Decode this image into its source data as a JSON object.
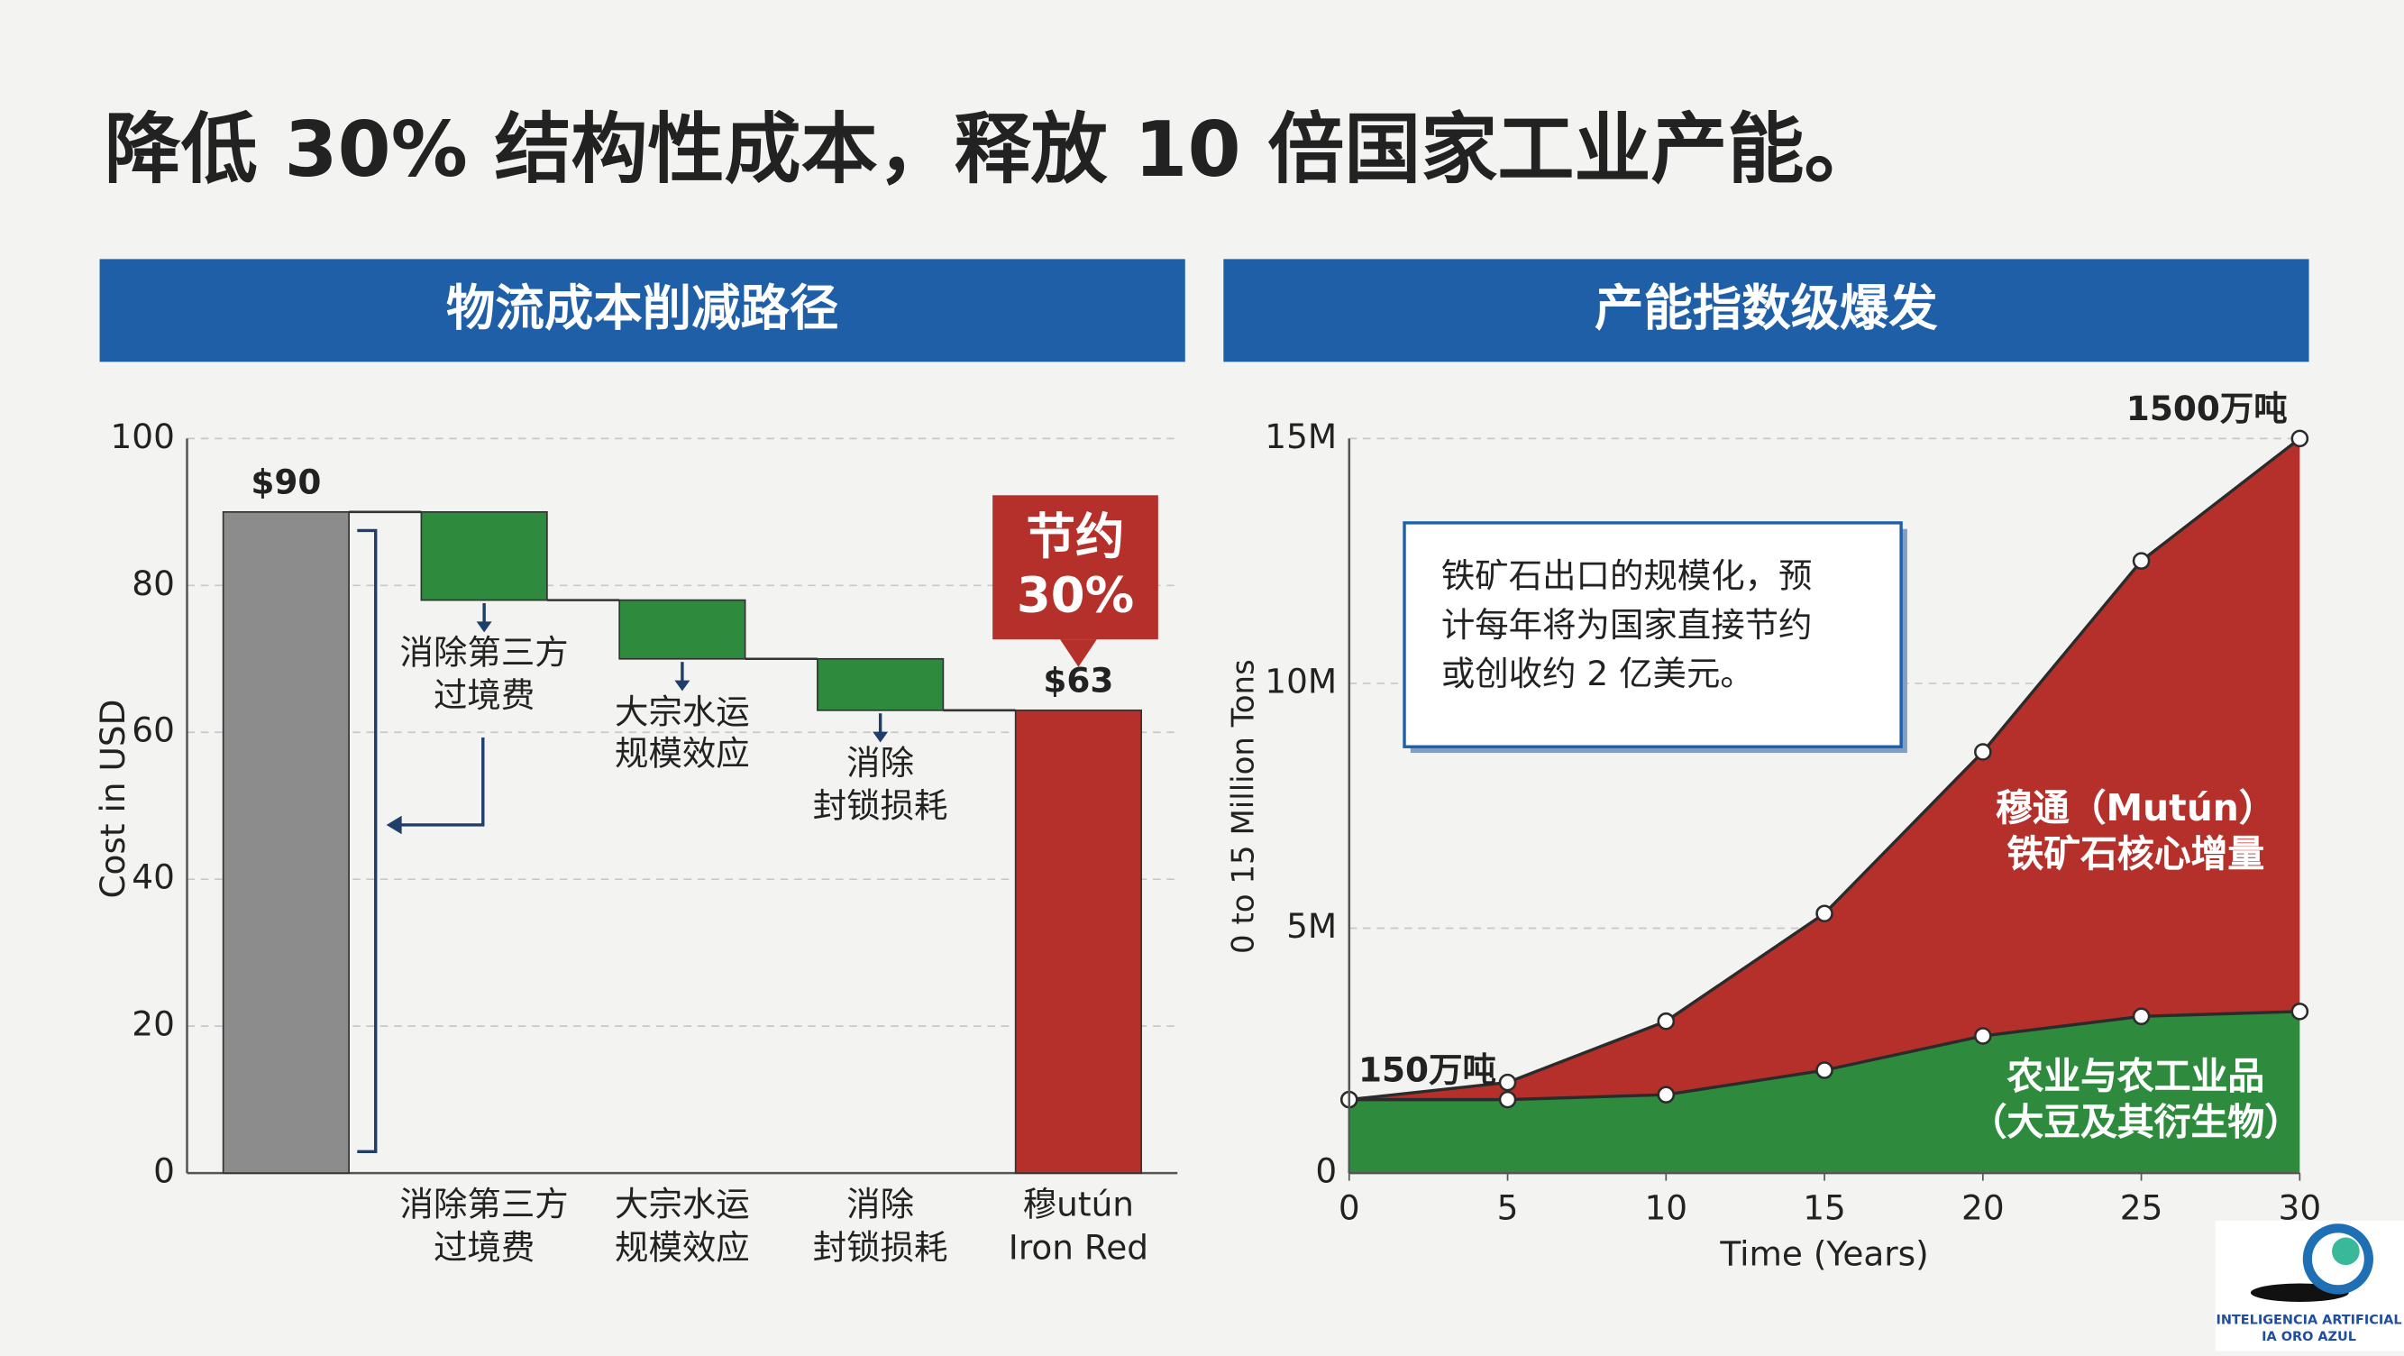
{
  "title": "降低 30% 结构性成本，释放 10 倍国家工业产能。",
  "chart_data": [
    {
      "type": "waterfall",
      "title": "物流成本削减路径",
      "categories": [
        null,
        "消除第三方\n过境费",
        "大宗水运\n规模效应",
        "消除\n封锁损耗",
        "穆utún\nIron Red"
      ],
      "values": [
        90,
        -12,
        -8,
        -7,
        63
      ],
      "value_labels": [
        "$90",
        null,
        null,
        null,
        "$63"
      ],
      "totals": [
        true,
        false,
        false,
        false,
        true
      ],
      "colors": [
        "#8c8c8c",
        "#2e8b3e",
        "#2e8b3e",
        "#2e8b3e",
        "#b5302a"
      ],
      "ylabel": "Cost in USD",
      "ylim": [
        0,
        100
      ],
      "yticks": [
        0,
        20,
        40,
        60,
        80,
        100
      ],
      "grid": true,
      "annotation": "节约\n30%"
    },
    {
      "type": "stacked_area",
      "title": "产能指数级爆发",
      "x": [
        0,
        5,
        10,
        15,
        20,
        25,
        30
      ],
      "series": [
        {
          "name": "农业与农工业品\n（大豆及其衍生物）",
          "color": "#2e8b3e",
          "values": [
            1.5,
            1.5,
            1.6,
            2.1,
            2.8,
            3.2,
            3.3
          ]
        },
        {
          "name": "穆通（Mutún）\n铁矿石核心增量",
          "color": "#b5302a",
          "values": [
            0,
            0.35,
            1.5,
            3.2,
            5.8,
            9.3,
            11.7
          ]
        }
      ],
      "xlabel": "Time (Years)",
      "ylabel": "0 to 15 Million Tons",
      "xlim": [
        0,
        30
      ],
      "xticks": [
        0,
        5,
        10,
        15,
        20,
        25,
        30
      ],
      "ylim": [
        0,
        15
      ],
      "yticks": [
        0,
        {
          "value": 5,
          "label": "5M"
        },
        {
          "value": 10,
          "label": "10M"
        },
        {
          "value": 15,
          "label": "15M"
        }
      ],
      "grid": true,
      "annotations": [
        {
          "text": "150万吨",
          "x": 0,
          "y": 1.5
        },
        {
          "text": "1500万吨",
          "x": 30,
          "y": 15
        }
      ],
      "note": "铁矿石出口的规模化，预\n计每年将为国家直接节约\n或创收约 2 亿美元。"
    }
  ],
  "logo": {
    "line1": "INTELIGENCIA ARTIFICIAL",
    "line2": "IA ORO AZUL"
  }
}
